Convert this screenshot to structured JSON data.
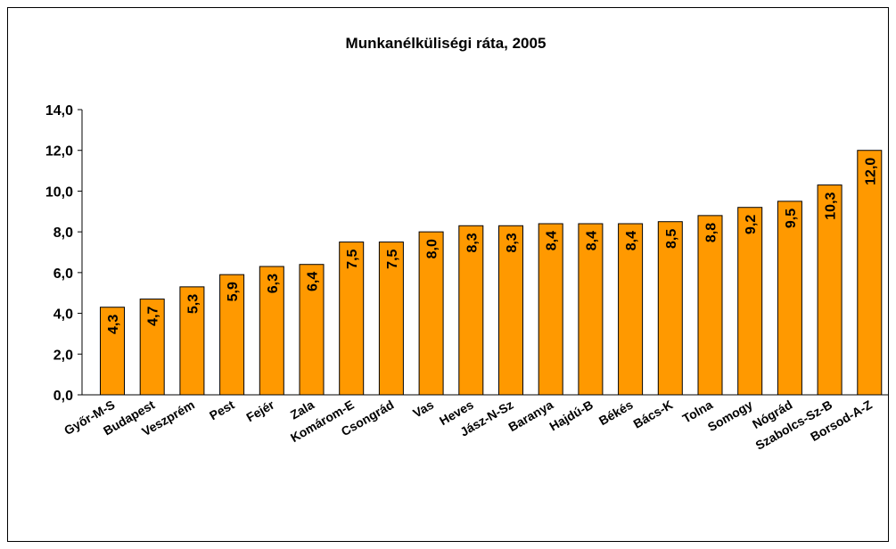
{
  "chart_data": {
    "type": "bar",
    "title": "Munkanélküliségi ráta, 2005",
    "categories": [
      "Győr-M-S",
      "Budapest",
      "Veszprém",
      "Pest",
      "Fejér",
      "Zala",
      "Komárom-E",
      "Csongrád",
      "Vas",
      "Heves",
      "Jász-N-Sz",
      "Baranya",
      "Hajdú-B",
      "Békés",
      "Bács-K",
      "Tolna",
      "Somogy",
      "Nógrád",
      "Szabolcs-Sz-B",
      "Borsod-A-Z"
    ],
    "values": [
      4.3,
      4.7,
      5.3,
      5.9,
      6.3,
      6.4,
      7.5,
      7.5,
      8.0,
      8.3,
      8.3,
      8.4,
      8.4,
      8.4,
      8.5,
      8.8,
      9.2,
      9.5,
      10.3,
      12.0
    ],
    "value_labels": [
      "4,3",
      "4,7",
      "5,3",
      "5,9",
      "6,3",
      "6,4",
      "7,5",
      "7,5",
      "8,0",
      "8,3",
      "8,3",
      "8,4",
      "8,4",
      "8,4",
      "8,5",
      "8,8",
      "9,2",
      "9,5",
      "10,3",
      "12,0"
    ],
    "color": "#FF9900",
    "ylim": [
      0,
      14
    ],
    "yticks": [
      {
        "value": 0,
        "label": "0,0"
      },
      {
        "value": 2,
        "label": "2,0"
      },
      {
        "value": 4,
        "label": "4,0"
      },
      {
        "value": 6,
        "label": "6,0"
      },
      {
        "value": 8,
        "label": "8,0"
      },
      {
        "value": 10,
        "label": "10,0"
      },
      {
        "value": 12,
        "label": "12,0"
      },
      {
        "value": 14,
        "label": "14,0"
      }
    ],
    "grid": false
  }
}
